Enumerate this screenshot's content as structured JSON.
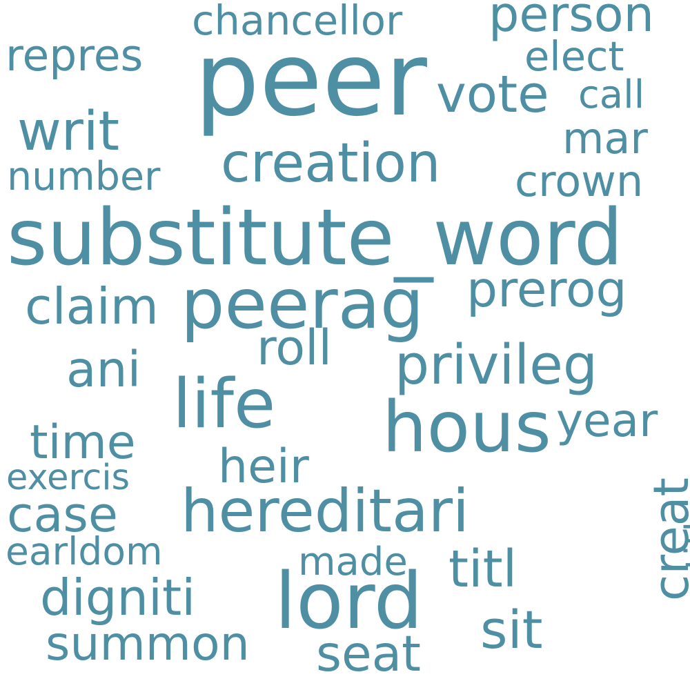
{
  "colors": {
    "word": "#4e8fa3",
    "background": "#ffffff"
  },
  "words": [
    "peer",
    "substitute_word",
    "peerag",
    "hous",
    "lord",
    "life",
    "hereditari",
    "creation",
    "vote",
    "person",
    "chancellor",
    "repres",
    "elect",
    "call",
    "writ",
    "mar",
    "number",
    "crown",
    "claim",
    "prerog",
    "roll",
    "privileg",
    "ani",
    "year",
    "time",
    "heir",
    "exercis",
    "case",
    "earldom",
    "made",
    "titl",
    "creat",
    "entitl",
    "digniti",
    "sit",
    "summon",
    "seat"
  ]
}
